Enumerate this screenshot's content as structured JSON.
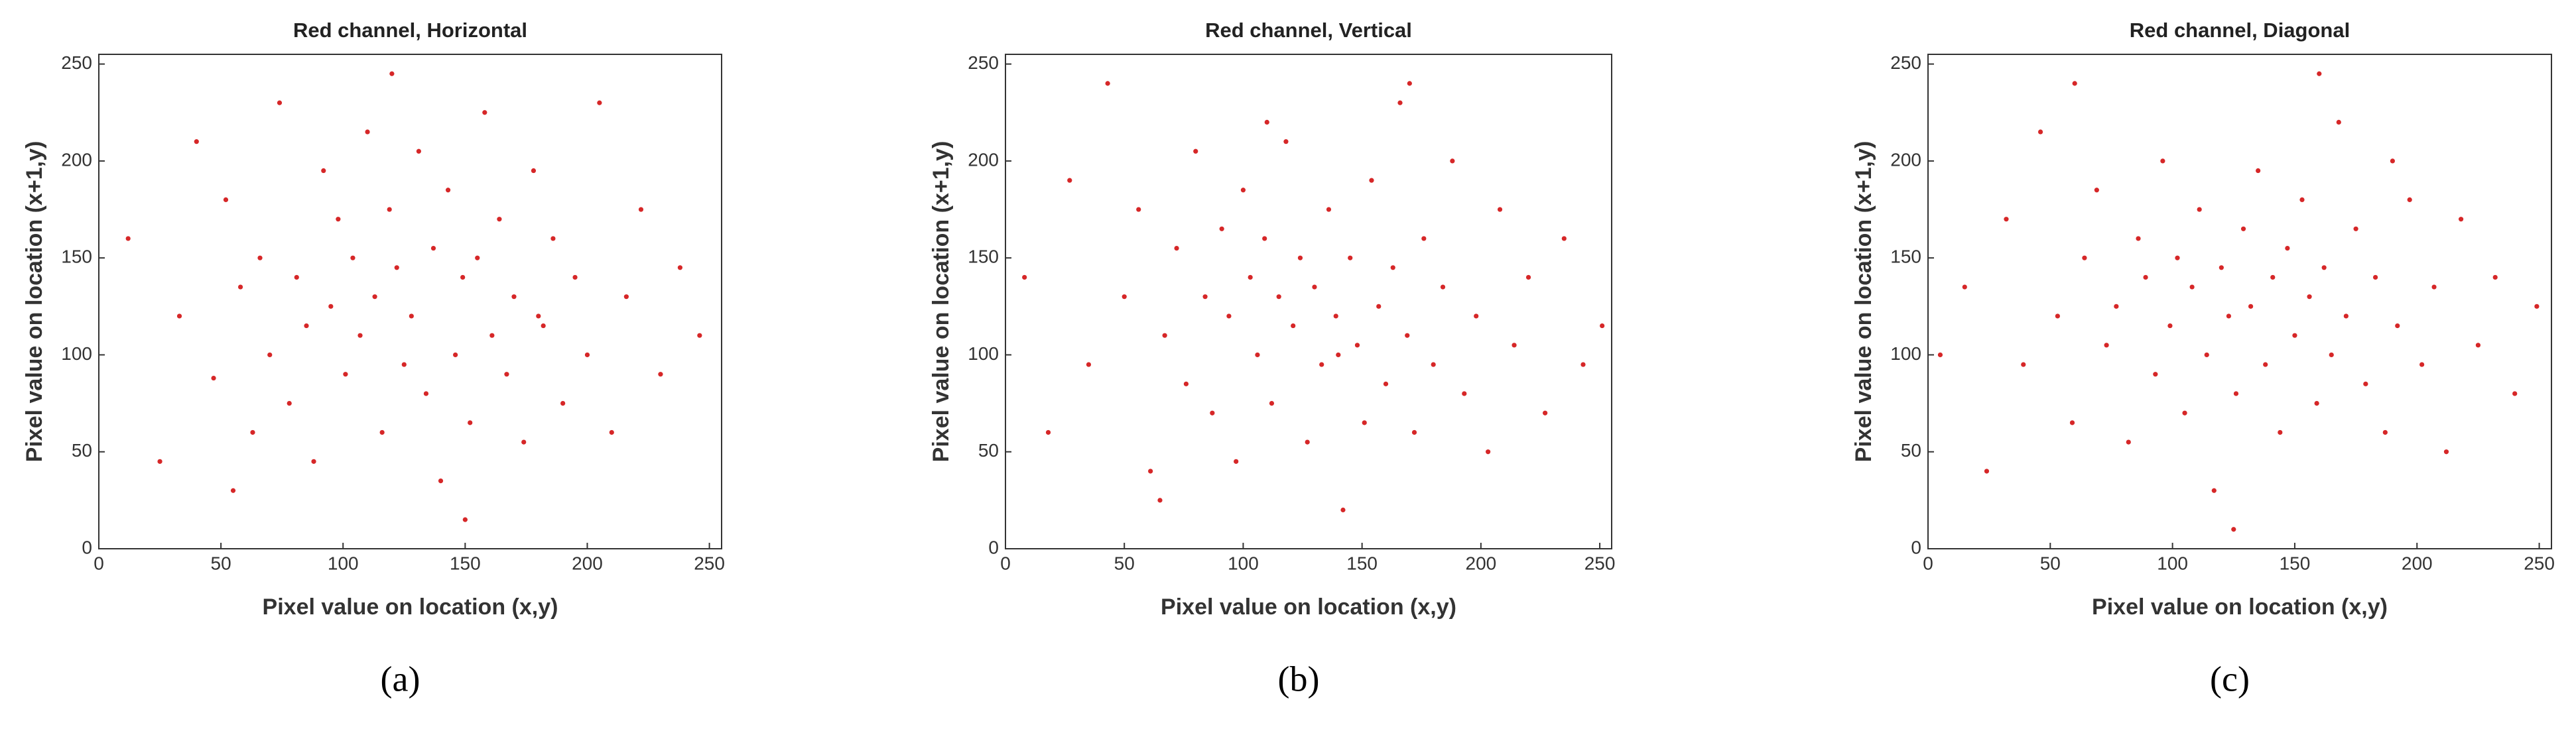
{
  "chart_data": [
    {
      "type": "scatter",
      "title": "Red channel, Horizontal",
      "xlabel": "Pixel value on location (x,y)",
      "ylabel": "Pixel value on location (x+1,y)",
      "caption": "(a)",
      "color": "#d62728",
      "xlim": [
        0,
        255
      ],
      "ylim": [
        0,
        255
      ],
      "xticks": [
        0,
        50,
        100,
        150,
        200,
        250
      ],
      "yticks": [
        0,
        50,
        100,
        150,
        200,
        250
      ],
      "x": [
        12,
        25,
        33,
        40,
        47,
        52,
        58,
        63,
        66,
        70,
        74,
        78,
        81,
        85,
        88,
        92,
        95,
        98,
        101,
        104,
        107,
        110,
        113,
        116,
        119,
        122,
        125,
        128,
        131,
        134,
        137,
        140,
        143,
        146,
        149,
        152,
        155,
        158,
        161,
        164,
        167,
        170,
        174,
        178,
        182,
        186,
        190,
        195,
        200,
        205,
        210,
        216,
        222,
        230,
        238,
        246,
        55,
        120,
        150,
        180
      ],
      "y": [
        160,
        45,
        120,
        210,
        88,
        180,
        135,
        60,
        150,
        100,
        230,
        75,
        140,
        115,
        45,
        195,
        125,
        170,
        90,
        150,
        110,
        215,
        130,
        60,
        175,
        145,
        95,
        120,
        205,
        80,
        155,
        35,
        185,
        100,
        140,
        65,
        150,
        225,
        110,
        170,
        90,
        130,
        55,
        195,
        115,
        160,
        75,
        140,
        100,
        230,
        60,
        130,
        175,
        90,
        145,
        110,
        30,
        245,
        15,
        120
      ]
    },
    {
      "type": "scatter",
      "title": "Red channel, Vertical",
      "xlabel": "Pixel value on location (x,y)",
      "ylabel": "Pixel value on location (x+1,y)",
      "caption": "(b)",
      "color": "#d62728",
      "xlim": [
        0,
        255
      ],
      "ylim": [
        0,
        255
      ],
      "xticks": [
        0,
        50,
        100,
        150,
        200,
        250
      ],
      "yticks": [
        0,
        50,
        100,
        150,
        200,
        250
      ],
      "x": [
        8,
        18,
        27,
        35,
        43,
        50,
        56,
        61,
        67,
        72,
        76,
        80,
        84,
        87,
        91,
        94,
        97,
        100,
        103,
        106,
        109,
        112,
        115,
        118,
        121,
        124,
        127,
        130,
        133,
        136,
        139,
        142,
        145,
        148,
        151,
        154,
        157,
        160,
        163,
        166,
        169,
        172,
        176,
        180,
        184,
        188,
        193,
        198,
        203,
        208,
        214,
        220,
        227,
        235,
        243,
        251,
        65,
        110,
        140,
        170
      ],
      "y": [
        140,
        60,
        190,
        95,
        240,
        130,
        175,
        40,
        110,
        155,
        85,
        205,
        130,
        70,
        165,
        120,
        45,
        185,
        140,
        100,
        160,
        75,
        130,
        210,
        115,
        150,
        55,
        135,
        95,
        175,
        120,
        20,
        150,
        105,
        65,
        190,
        125,
        85,
        145,
        230,
        110,
        60,
        160,
        95,
        135,
        200,
        80,
        120,
        50,
        175,
        105,
        140,
        70,
        160,
        95,
        115,
        25,
        220,
        100,
        240
      ]
    },
    {
      "type": "scatter",
      "title": "Red channel, Diagonal",
      "xlabel": "Pixel value on location (x,y)",
      "ylabel": "Pixel value on location (x+1,y)",
      "caption": "(c)",
      "color": "#d62728",
      "xlim": [
        0,
        255
      ],
      "ylim": [
        0,
        255
      ],
      "xticks": [
        0,
        50,
        100,
        150,
        200,
        250
      ],
      "yticks": [
        0,
        50,
        100,
        150,
        200,
        250
      ],
      "x": [
        5,
        15,
        24,
        32,
        39,
        46,
        53,
        59,
        64,
        69,
        73,
        77,
        82,
        86,
        89,
        93,
        96,
        99,
        102,
        105,
        108,
        111,
        114,
        117,
        120,
        123,
        126,
        129,
        132,
        135,
        138,
        141,
        144,
        147,
        150,
        153,
        156,
        159,
        162,
        165,
        168,
        171,
        175,
        179,
        183,
        187,
        192,
        197,
        202,
        207,
        212,
        218,
        225,
        232,
        240,
        249,
        60,
        125,
        160,
        190
      ],
      "y": [
        100,
        135,
        40,
        170,
        95,
        215,
        120,
        65,
        150,
        185,
        105,
        125,
        55,
        160,
        140,
        90,
        200,
        115,
        150,
        70,
        135,
        175,
        100,
        30,
        145,
        120,
        80,
        165,
        125,
        195,
        95,
        140,
        60,
        155,
        110,
        180,
        130,
        75,
        145,
        100,
        220,
        120,
        165,
        85,
        140,
        60,
        115,
        180,
        95,
        135,
        50,
        170,
        105,
        140,
        80,
        125,
        240,
        10,
        245,
        200
      ]
    }
  ]
}
